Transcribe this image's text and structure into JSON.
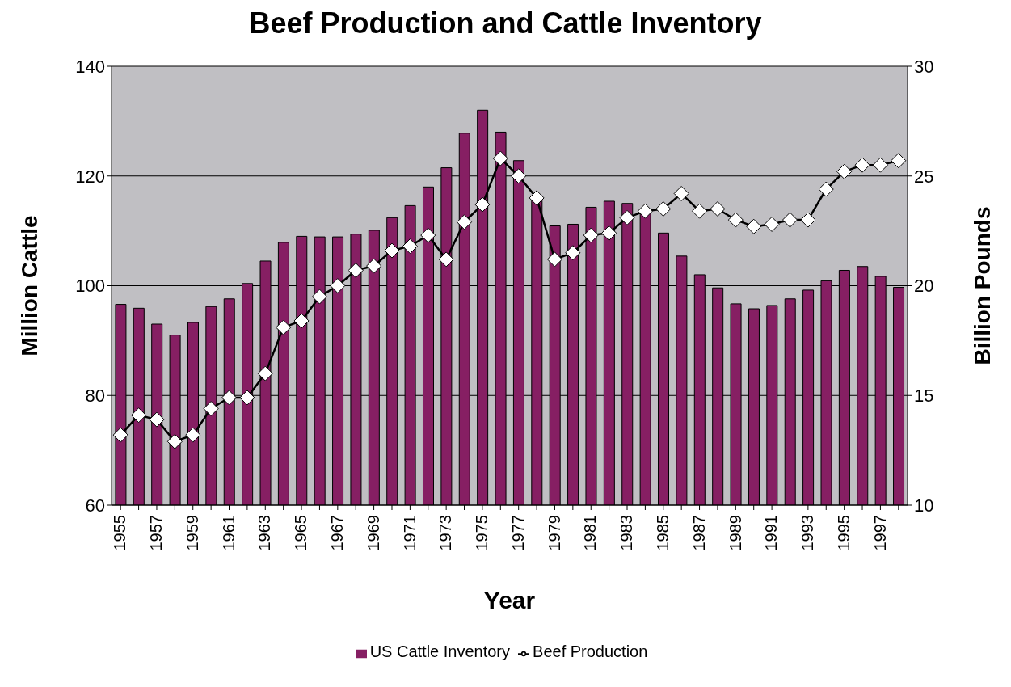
{
  "chart_data": {
    "type": "bar",
    "title": "Beef Production and Cattle Inventory",
    "xlabel": "Year",
    "ylabel": "Million Cattle",
    "y2label": "Billion Pounds",
    "categories": [
      "1955",
      null,
      "1957",
      null,
      "1959",
      null,
      "1961",
      null,
      "1963",
      null,
      "1965",
      null,
      "1967",
      null,
      "1969",
      null,
      "1971",
      null,
      "1973",
      null,
      "1975",
      null,
      "1977",
      null,
      "1979",
      null,
      "1981",
      null,
      "1983",
      null,
      "1985",
      null,
      "1987",
      null,
      "1989",
      null,
      "1991",
      null,
      "1993",
      null,
      "1995",
      null,
      "1997",
      null
    ],
    "series": [
      {
        "name": "US Cattle Inventory",
        "color": "#861f63",
        "values": [
          96.6,
          95.9,
          93,
          91,
          93.3,
          96.2,
          97.6,
          100.4,
          104.5,
          107.9,
          109,
          108.9,
          108.9,
          109.4,
          110.1,
          112.4,
          114.6,
          118,
          121.5,
          127.8,
          132,
          128,
          122.8,
          116.4,
          110.9,
          111.2,
          114.3,
          115.4,
          115,
          113.4,
          109.6,
          105.4,
          102,
          99.6,
          96.7,
          95.8,
          96.4,
          97.6,
          99.2,
          100.9,
          102.8,
          103.5,
          101.7,
          99.7
        ]
      },
      {
        "name": "Beef Production",
        "type": "line",
        "axis": "y2",
        "color": "#000000",
        "marker": "diamond",
        "values": [
          13.2,
          14.1,
          13.9,
          12.9,
          13.2,
          14.4,
          14.9,
          14.9,
          16.0,
          18.1,
          18.4,
          19.5,
          20.0,
          20.7,
          20.9,
          21.6,
          21.8,
          22.3,
          21.2,
          22.9,
          23.7,
          25.8,
          25.0,
          24.0,
          21.2,
          21.5,
          22.3,
          22.4,
          23.1,
          23.4,
          23.5,
          24.2,
          23.4,
          23.5,
          23.0,
          22.7,
          22.8,
          23.0,
          23.0,
          24.4,
          25.2,
          25.5,
          25.5,
          25.7
        ]
      }
    ],
    "ylim": [
      60,
      140
    ],
    "yticks": [
      60,
      80,
      100,
      120,
      140
    ],
    "y2lim": [
      10,
      30
    ],
    "y2ticks": [
      10,
      15,
      20,
      25,
      30
    ],
    "grid": "y",
    "legend": "bottom"
  }
}
